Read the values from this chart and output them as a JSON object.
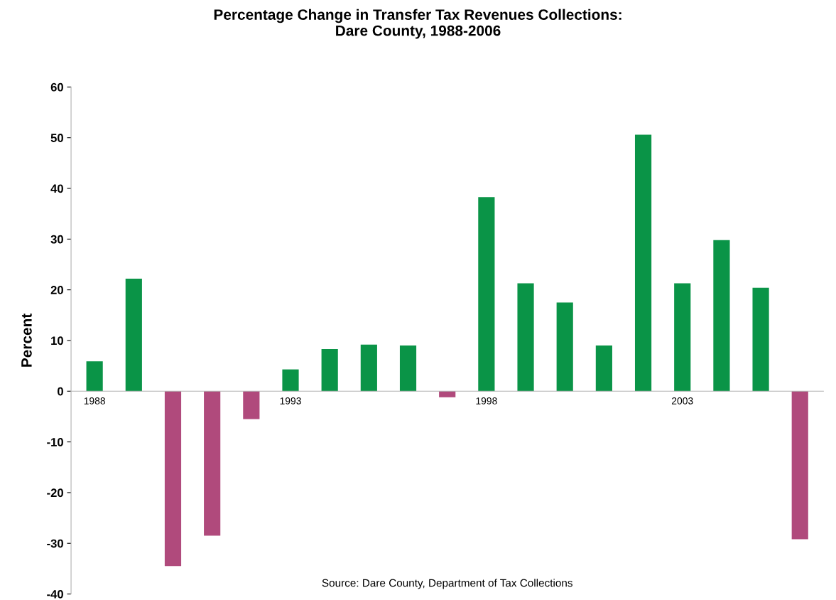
{
  "chart_data": {
    "type": "bar",
    "title": "Percentage Change in Transfer Tax Revenues Collections:\nDare County, 1988-2006",
    "ylabel": "Percent",
    "categories": [
      "1988",
      null,
      null,
      null,
      null,
      "1993",
      null,
      null,
      null,
      null,
      "1998",
      null,
      null,
      null,
      null,
      "2003",
      null,
      null,
      null
    ],
    "values": [
      5.9,
      22.2,
      -34.5,
      -28.5,
      -5.5,
      4.3,
      8.3,
      9.2,
      9.0,
      -1.2,
      38.3,
      21.3,
      17.5,
      9.0,
      50.6,
      21.3,
      29.8,
      20.4,
      -29.2
    ],
    "colors": [
      "#0a9447",
      "#0a9447",
      "#b04a7c",
      "#b04a7c",
      "#b04a7c",
      "#0a9447",
      "#0a9447",
      "#0a9447",
      "#0a9447",
      "#b04a7c",
      "#0a9447",
      "#0a9447",
      "#0a9447",
      "#0a9447",
      "#0a9447",
      "#0a9447",
      "#0a9447",
      "#0a9447",
      "#b04a7c"
    ],
    "ylim": [
      -40,
      60
    ],
    "yticks": [
      -40,
      -30,
      -20,
      -10,
      0,
      10,
      20,
      30,
      40,
      50,
      60
    ],
    "grid": false,
    "annotations": [
      "Source: Dare County, Department of Tax Collections"
    ]
  }
}
